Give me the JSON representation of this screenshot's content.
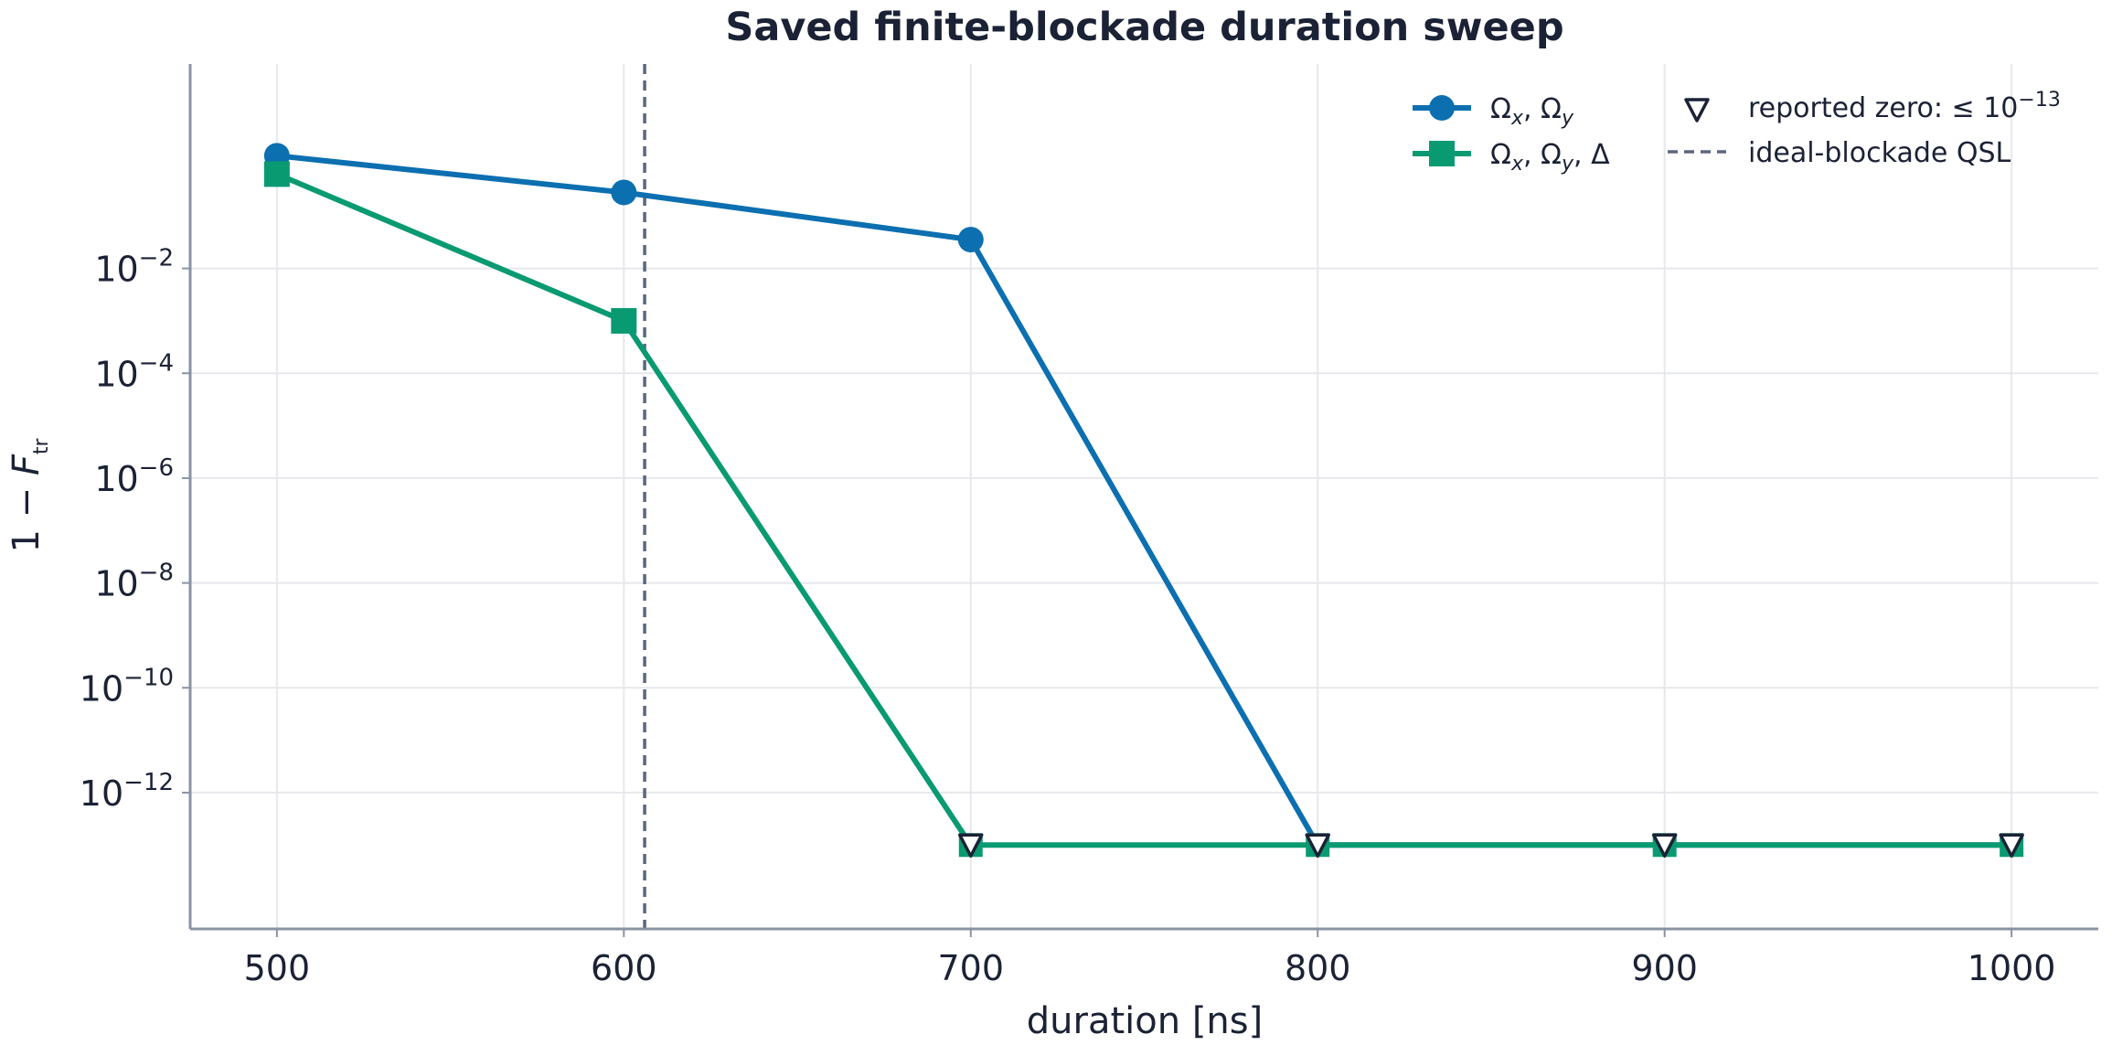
{
  "chart_data": {
    "type": "line",
    "title": "Saved finite-blockade duration sweep",
    "xlabel": "duration [ns]",
    "ylabel": "1 − F_tr",
    "y_scale": "log",
    "xlim": [
      475,
      1025
    ],
    "ylim_exponent": [
      -14.6,
      1.9
    ],
    "xticks": [
      500,
      600,
      700,
      800,
      900,
      1000
    ],
    "ytick_exponents": [
      -12,
      -10,
      -8,
      -6,
      -4,
      -2
    ],
    "grid": true,
    "legend_placement": "top-right",
    "series": [
      {
        "name": "Ω_x, Ω_y",
        "color": "#0c6fb0",
        "marker": "circle",
        "x": [
          500,
          600,
          700,
          800,
          900,
          1000
        ],
        "log10_y": [
          0.15,
          -0.55,
          -1.45,
          -13,
          -13,
          -13
        ]
      },
      {
        "name": "Ω_x, Ω_y, Δ",
        "color": "#0a9a72",
        "marker": "square",
        "x": [
          500,
          600,
          700,
          800,
          900,
          1000
        ],
        "log10_y": [
          -0.2,
          -3.0,
          -13,
          -13,
          -13,
          -13
        ]
      }
    ],
    "reported_zero": {
      "label": "reported zero: ≤ 10^−13",
      "log10_y": -13,
      "x": [
        700,
        800,
        900,
        1000
      ]
    },
    "reference_line": {
      "label": "ideal-blockade QSL",
      "x": 606,
      "color": "#5b6680"
    }
  }
}
